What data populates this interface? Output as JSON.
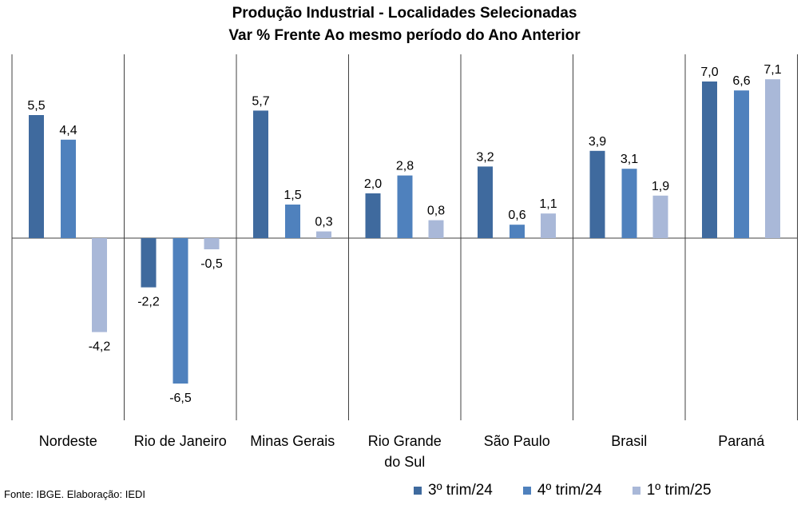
{
  "title": "Produção Industrial - Localidades Selecionadas",
  "subtitle": "Var % Frente Ao mesmo período do Ano Anterior",
  "source": "Fonte: IBGE. Elaboração: IEDI",
  "colors": {
    "s1": "#3f6a9e",
    "s2": "#4f81bd",
    "s3": "#a9b8d8"
  },
  "chart_data": {
    "type": "bar",
    "categories": [
      [
        "Nordeste"
      ],
      [
        "Rio de Janeiro"
      ],
      [
        "Minas Gerais"
      ],
      [
        "Rio Grande",
        "do Sul"
      ],
      [
        "São Paulo"
      ],
      [
        "Brasil"
      ],
      [
        "Paraná"
      ]
    ],
    "series": [
      {
        "name": "3º trim/24",
        "values": [
          5.5,
          -2.2,
          5.7,
          2.0,
          3.2,
          3.9,
          7.0
        ],
        "labels": [
          "5,5",
          "-2,2",
          "5,7",
          "2,0",
          "3,2",
          "3,9",
          "7,0"
        ]
      },
      {
        "name": "4º trim/24",
        "values": [
          4.4,
          -6.5,
          1.5,
          2.8,
          0.6,
          3.1,
          6.6
        ],
        "labels": [
          "4,4",
          "-6,5",
          "1,5",
          "2,8",
          "0,6",
          "3,1",
          "6,6"
        ]
      },
      {
        "name": "1º trim/25",
        "values": [
          -4.2,
          -0.5,
          0.3,
          0.8,
          1.1,
          1.9,
          7.1
        ],
        "labels": [
          "-4,2",
          "-0,5",
          "0,3",
          "0,8",
          "1,1",
          "1,9",
          "7,1"
        ]
      }
    ],
    "legend_position": "bottom-right",
    "ylim": [
      -8.0,
      8.0
    ],
    "grid": false
  }
}
